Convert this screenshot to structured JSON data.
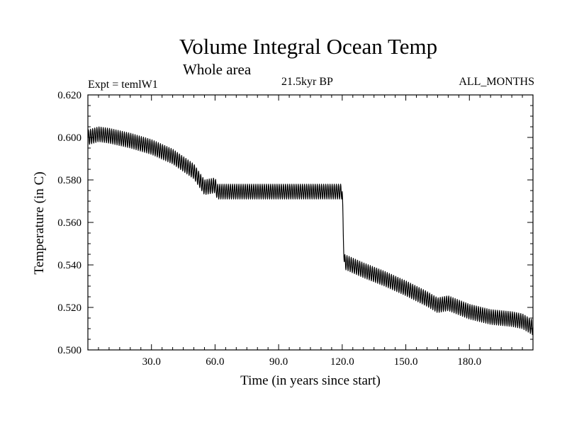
{
  "chart_data": {
    "type": "line",
    "title": "Volume Integral Ocean Temp",
    "subtitle": "Whole area",
    "annotations": {
      "left": "Expt = temlW1",
      "center": "21.5kyr BP",
      "right": "ALL_MONTHS"
    },
    "xlabel": "Time (in years since start)",
    "ylabel": "Temperature (in C)",
    "xlim": [
      0,
      210
    ],
    "ylim": [
      0.5,
      0.62
    ],
    "x_ticks": [
      30,
      60,
      90,
      120,
      150,
      180
    ],
    "x_tick_labels": [
      "30.0",
      "60.0",
      "90.0",
      "120.0",
      "150.0",
      "180.0"
    ],
    "y_ticks": [
      0.5,
      0.52,
      0.54,
      0.56,
      0.58,
      0.6,
      0.62
    ],
    "y_tick_labels": [
      "0.500",
      "0.520",
      "0.540",
      "0.560",
      "0.580",
      "0.600",
      "0.620"
    ],
    "grid": false,
    "series": [
      {
        "name": "Volume integral ocean temperature",
        "color": "#000000",
        "seasonal_amplitude": 0.0035,
        "trend_x": [
          0,
          5,
          10,
          20,
          30,
          40,
          45,
          50,
          55,
          60,
          61,
          120,
          120.5,
          121,
          130,
          140,
          150,
          160,
          165,
          170,
          180,
          190,
          200,
          205,
          210
        ],
        "trend_y": [
          0.6,
          0.6015,
          0.6008,
          0.5985,
          0.5955,
          0.591,
          0.5875,
          0.584,
          0.5765,
          0.5775,
          0.5745,
          0.5745,
          0.5545,
          0.5415,
          0.5375,
          0.5335,
          0.529,
          0.524,
          0.521,
          0.522,
          0.518,
          0.5155,
          0.5145,
          0.5135,
          0.5105
        ]
      }
    ]
  }
}
